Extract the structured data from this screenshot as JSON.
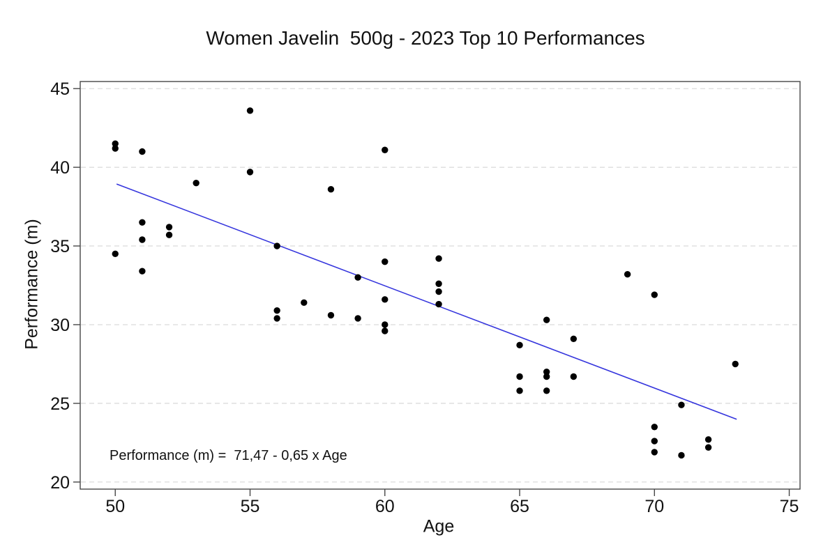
{
  "chart_data": {
    "type": "scatter",
    "title": "Women Javelin  500g - 2023 Top 10 Performances",
    "xlabel": "Age",
    "ylabel": "Performance (m)",
    "annotation": "Performance (m) =  71,47 - 0,65 x Age",
    "x_ticks": [
      50,
      55,
      60,
      65,
      70,
      75
    ],
    "y_ticks": [
      20,
      25,
      30,
      35,
      40,
      45
    ],
    "xlim": [
      48.7,
      75.4
    ],
    "ylim": [
      19.55,
      45.45
    ],
    "grid": "horizontal-dashed",
    "legend": "none",
    "point_color": "#000000",
    "line_color": "#3535dd",
    "frame_color": "#464646",
    "grid_color": "#d9d9d9",
    "regression": {
      "intercept": 71.47,
      "slope": -0.65,
      "x_start": 50.05,
      "x_end": 73.05
    },
    "points": [
      [
        50,
        41.5
      ],
      [
        50,
        41.2
      ],
      [
        50,
        34.5
      ],
      [
        51,
        41.0
      ],
      [
        51,
        36.5
      ],
      [
        51,
        35.4
      ],
      [
        51,
        33.4
      ],
      [
        52,
        36.2
      ],
      [
        52,
        35.7
      ],
      [
        53,
        39.0
      ],
      [
        55,
        43.6
      ],
      [
        55,
        39.7
      ],
      [
        56,
        35.0
      ],
      [
        56,
        30.9
      ],
      [
        56,
        30.4
      ],
      [
        57,
        31.4
      ],
      [
        58,
        38.6
      ],
      [
        58,
        30.6
      ],
      [
        59,
        33.0
      ],
      [
        59,
        30.4
      ],
      [
        60,
        41.1
      ],
      [
        60,
        34.0
      ],
      [
        60,
        31.6
      ],
      [
        60,
        30.0
      ],
      [
        60,
        29.6
      ],
      [
        62,
        34.2
      ],
      [
        62,
        32.6
      ],
      [
        62,
        32.1
      ],
      [
        62,
        31.3
      ],
      [
        65,
        28.7
      ],
      [
        65,
        26.7
      ],
      [
        65,
        25.8
      ],
      [
        66,
        30.3
      ],
      [
        66,
        27.0
      ],
      [
        66,
        26.7
      ],
      [
        66,
        25.8
      ],
      [
        67,
        29.1
      ],
      [
        67,
        26.7
      ],
      [
        69,
        33.2
      ],
      [
        70,
        31.9
      ],
      [
        70,
        23.5
      ],
      [
        70,
        22.6
      ],
      [
        70,
        21.9
      ],
      [
        71,
        24.9
      ],
      [
        71,
        21.7
      ],
      [
        72,
        22.7
      ],
      [
        72,
        22.2
      ],
      [
        73,
        27.5
      ]
    ]
  }
}
